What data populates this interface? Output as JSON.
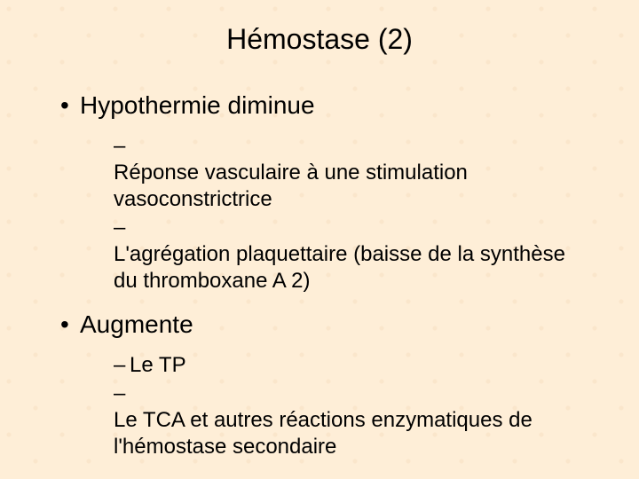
{
  "slide": {
    "background_color": "#feeed7",
    "text_color": "#000000",
    "title": "Hémostase (2)",
    "title_fontsize": 32,
    "level1_fontsize": 28,
    "level2_fontsize": 24,
    "bullet_char": "•",
    "dash_char": "–",
    "sections": [
      {
        "label": "Hypothermie diminue",
        "items": [
          "Réponse vasculaire à une stimulation vasoconstrictrice",
          "L'agrégation plaquettaire (baisse de la synthèse du thromboxane A 2)"
        ]
      },
      {
        "label": "Augmente",
        "items": [
          "Le TP",
          "Le TCA et autres réactions enzymatiques de l'hémostase secondaire"
        ]
      }
    ]
  }
}
